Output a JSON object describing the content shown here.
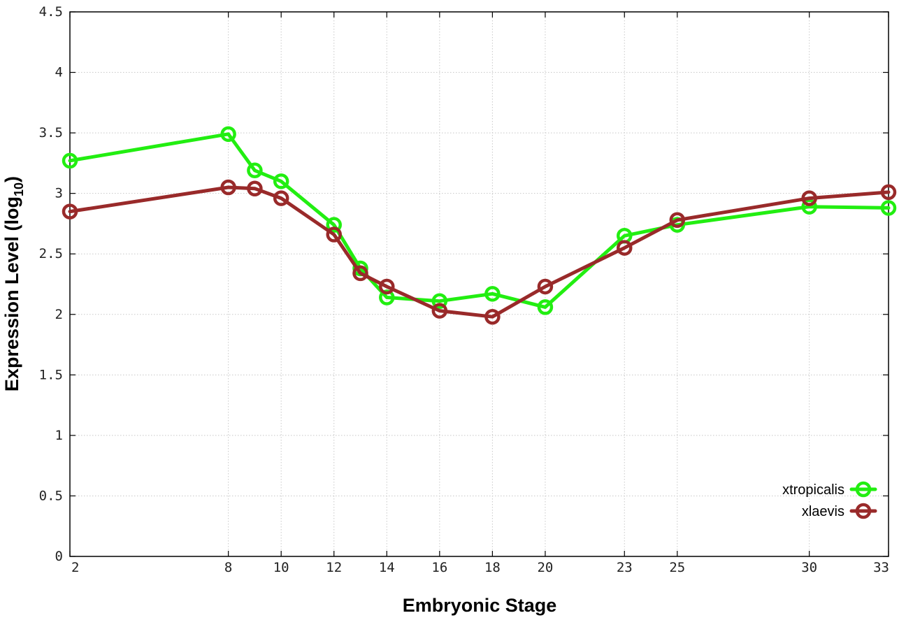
{
  "chart_data": {
    "type": "line",
    "title": "",
    "xlabel": "Embryonic Stage",
    "ylabel_main": "Expression Level (log",
    "ylabel_sub": "10",
    "ylabel_close": ")",
    "x": [
      2,
      8,
      9,
      10,
      12,
      13,
      14,
      16,
      18,
      20,
      23,
      25,
      30,
      33
    ],
    "x_ticks": [
      {
        "value": 2,
        "label": "2"
      },
      {
        "value": 8,
        "label": "8"
      },
      {
        "value": 10,
        "label": "10"
      },
      {
        "value": 12,
        "label": "12"
      },
      {
        "value": 14,
        "label": "14"
      },
      {
        "value": 16,
        "label": "16"
      },
      {
        "value": 18,
        "label": "18"
      },
      {
        "value": 20,
        "label": "20"
      },
      {
        "value": 23,
        "label": "23"
      },
      {
        "value": 25,
        "label": "25"
      },
      {
        "value": 30,
        "label": "30"
      },
      {
        "value": 33,
        "label": "33"
      }
    ],
    "y_ticks": [
      {
        "value": 0,
        "label": "0"
      },
      {
        "value": 0.5,
        "label": "0.5"
      },
      {
        "value": 1,
        "label": "1"
      },
      {
        "value": 1.5,
        "label": "1.5"
      },
      {
        "value": 2,
        "label": "2"
      },
      {
        "value": 2.5,
        "label": "2.5"
      },
      {
        "value": 3,
        "label": "3"
      },
      {
        "value": 3.5,
        "label": "3.5"
      },
      {
        "value": 4,
        "label": "4"
      },
      {
        "value": 4.5,
        "label": "4.5"
      }
    ],
    "xlim": [
      2,
      33
    ],
    "ylim": [
      0,
      4.5
    ],
    "grid": true,
    "legend_position": "bottom-right",
    "series": [
      {
        "name": "xtropicalis",
        "color": "#22ee11",
        "values": [
          3.27,
          3.49,
          3.19,
          3.1,
          2.74,
          2.38,
          2.14,
          2.11,
          2.17,
          2.06,
          2.65,
          2.74,
          2.89,
          2.88
        ]
      },
      {
        "name": "xlaevis",
        "color": "#992a2a",
        "values": [
          2.85,
          3.05,
          3.04,
          2.96,
          2.66,
          2.34,
          2.23,
          2.03,
          1.98,
          2.23,
          2.55,
          2.78,
          2.96,
          3.01
        ]
      }
    ]
  }
}
